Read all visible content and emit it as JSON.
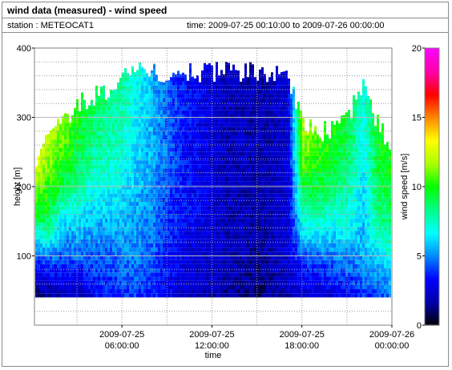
{
  "header": {
    "title": "wind data (measured) - wind speed",
    "station": "station : METEOCAT1",
    "time_range": "time: 2009-07-25 00:10:00 to 2009-07-26 00:00:00"
  },
  "chart_data": {
    "type": "heatmap",
    "title": "wind data (measured) - wind speed",
    "xlabel": "time",
    "ylabel": "height [m]",
    "colorbar_label": "wind speed [m/s]",
    "x_range": [
      "2009-07-25 00:10:00",
      "2009-07-26 00:00:00"
    ],
    "x_ticks": [
      {
        "value": "2009-07-25 06:00:00",
        "date": "2009-07-25",
        "time": "06:00:00"
      },
      {
        "value": "2009-07-25 12:00:00",
        "date": "2009-07-25",
        "time": "12:00:00"
      },
      {
        "value": "2009-07-25 18:00:00",
        "date": "2009-07-25",
        "time": "18:00:00"
      },
      {
        "value": "2009-07-26 00:00:00",
        "date": "2009-07-26",
        "time": "00:00:00"
      }
    ],
    "ylim": [
      0,
      400
    ],
    "y_ticks": [
      100,
      200,
      300,
      400
    ],
    "colorbar_range": [
      0,
      20
    ],
    "colorbar_ticks": [
      0,
      5,
      10,
      15,
      20
    ],
    "colormap": [
      "#000000",
      "#0000aa",
      "#0000ff",
      "#0088ff",
      "#00ffff",
      "#00ff88",
      "#00ff00",
      "#aaff00",
      "#ffff00",
      "#ff8800",
      "#ff0000",
      "#ff00aa",
      "#ff00ff"
    ],
    "grid": true,
    "profiles": [
      {
        "time": "2009-07-25 00:00",
        "top": 238,
        "speeds": [
          0.8,
          3,
          6,
          10,
          11,
          14
        ]
      },
      {
        "time": "2009-07-25 01:00",
        "top": 268,
        "speeds": [
          1.5,
          4,
          8,
          10,
          11,
          12
        ]
      },
      {
        "time": "2009-07-25 02:00",
        "top": 295,
        "speeds": [
          2,
          4,
          6,
          9,
          10.5,
          11.5
        ]
      },
      {
        "time": "2009-07-25 03:00",
        "top": 320,
        "speeds": [
          2,
          4.5,
          6.5,
          8.5,
          9.5,
          10
        ]
      },
      {
        "time": "2009-07-25 04:00",
        "top": 330,
        "speeds": [
          3,
          4.5,
          6,
          7.5,
          8.5,
          9
        ]
      },
      {
        "time": "2009-07-25 05:00",
        "top": 340,
        "speeds": [
          3.5,
          4.5,
          6,
          7.5,
          8,
          8.5
        ]
      },
      {
        "time": "2009-07-25 06:00",
        "top": 355,
        "speeds": [
          4,
          5,
          6,
          7,
          7.5,
          8
        ]
      },
      {
        "time": "2009-07-25 07:00",
        "top": 365,
        "speeds": [
          4,
          5,
          5.5,
          6,
          6.5,
          7
        ]
      },
      {
        "time": "2009-07-25 08:00",
        "top": 365,
        "speeds": [
          3.5,
          4.5,
          5,
          5.5,
          5.5,
          5.5
        ]
      },
      {
        "time": "2009-07-25 09:00",
        "top": 365,
        "speeds": [
          3,
          3.5,
          4,
          4.5,
          4.5,
          4.5
        ]
      },
      {
        "time": "2009-07-25 10:00",
        "top": 365,
        "speeds": [
          2.5,
          3,
          3.5,
          3.5,
          3.5,
          3.5
        ]
      },
      {
        "time": "2009-07-25 11:00",
        "top": 365,
        "speeds": [
          2,
          2.5,
          3,
          3,
          3,
          3
        ]
      },
      {
        "time": "2009-07-25 12:00",
        "top": 365,
        "speeds": [
          2,
          2.5,
          2.5,
          2.5,
          2.5,
          2.5
        ]
      },
      {
        "time": "2009-07-25 13:00",
        "top": 365,
        "speeds": [
          1.5,
          2,
          2,
          2,
          2,
          2
        ]
      },
      {
        "time": "2009-07-25 14:00",
        "top": 365,
        "speeds": [
          1.5,
          2,
          2,
          2,
          2,
          2
        ]
      },
      {
        "time": "2009-07-25 15:00",
        "top": 365,
        "speeds": [
          1.2,
          1.5,
          1.8,
          1.8,
          1.8,
          1.8
        ]
      },
      {
        "time": "2009-07-25 16:00",
        "top": 365,
        "speeds": [
          1.5,
          2,
          2,
          2,
          2,
          2
        ]
      },
      {
        "time": "2009-07-25 17:00",
        "top": 365,
        "speeds": [
          2,
          2.5,
          2.5,
          2.5,
          2.5,
          2.5
        ]
      },
      {
        "time": "2009-07-25 18:00",
        "top": 290,
        "speeds": [
          2.5,
          4,
          7,
          9,
          11,
          12
        ]
      },
      {
        "time": "2009-07-25 19:00",
        "top": 280,
        "speeds": [
          2.5,
          4,
          7,
          9,
          10,
          11
        ]
      },
      {
        "time": "2009-07-25 20:00",
        "top": 280,
        "speeds": [
          3,
          4.5,
          6.5,
          8.5,
          9.5,
          10
        ]
      },
      {
        "time": "2009-07-25 21:00",
        "top": 300,
        "speeds": [
          3,
          5,
          7,
          8,
          9,
          9.5
        ]
      },
      {
        "time": "2009-07-25 22:00",
        "top": 345,
        "speeds": [
          4,
          5.5,
          6,
          6.5,
          7,
          7
        ]
      },
      {
        "time": "2009-07-25 23:00",
        "top": 290,
        "speeds": [
          4,
          6,
          8,
          9,
          9.5,
          10
        ]
      },
      {
        "time": "2009-07-26 00:00",
        "top": 250,
        "speeds": [
          5,
          6.5,
          8,
          9,
          9.5,
          10
        ]
      }
    ]
  }
}
